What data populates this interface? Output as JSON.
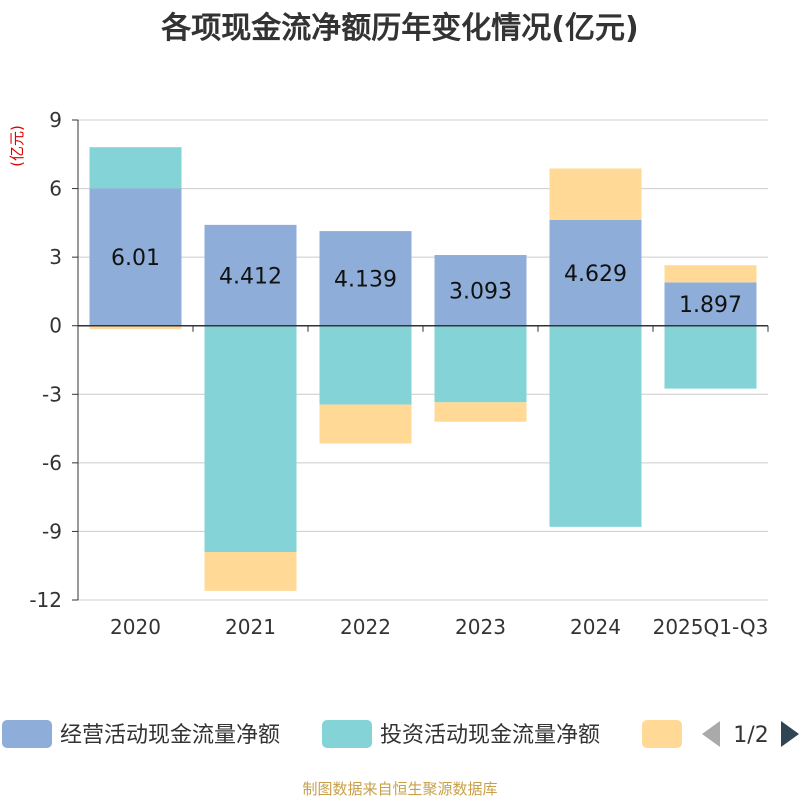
{
  "footer": "制图数据来自恒生聚源数据库",
  "colors": {
    "operating": "#8eaed9",
    "investing": "#84d3d6",
    "financing": "#ffd995",
    "axis": "#333333",
    "grid": "#cccccc",
    "unit": "#dd0000",
    "footer": "#c8a04a",
    "pager_active": "#2f4554",
    "pager_inactive": "#aaaaaa"
  },
  "chart_data": {
    "type": "bar",
    "stacked": true,
    "title": "各项现金流净额历年变化情况(亿元)",
    "ylabel": "(亿元)",
    "xlabel": "",
    "ylim": [
      -12,
      9
    ],
    "yticks": [
      9,
      6,
      3,
      0,
      -3,
      -6,
      -9,
      -12
    ],
    "ytick_labels": [
      "9",
      "6",
      "3",
      "0",
      "-3",
      "-6",
      "-9",
      "-12"
    ],
    "categories": [
      "2020",
      "2021",
      "2022",
      "2023",
      "2024",
      "2025Q1-Q3"
    ],
    "series": [
      {
        "name": "经营活动现金流量净额",
        "values": [
          6.01,
          4.412,
          4.139,
          3.093,
          4.629,
          1.897
        ],
        "labels": [
          "6.01",
          "4.412",
          "4.139",
          "3.093",
          "4.629",
          "1.897"
        ]
      },
      {
        "name": "投资活动现金流量净额",
        "values": [
          1.8,
          -9.9,
          -3.45,
          -3.35,
          -8.8,
          -2.75
        ]
      },
      {
        "name": "",
        "values": [
          -0.15,
          -1.7,
          -1.7,
          -0.85,
          2.25,
          0.75
        ]
      }
    ],
    "legend": {
      "position": "bottom",
      "page": "1/2"
    }
  }
}
